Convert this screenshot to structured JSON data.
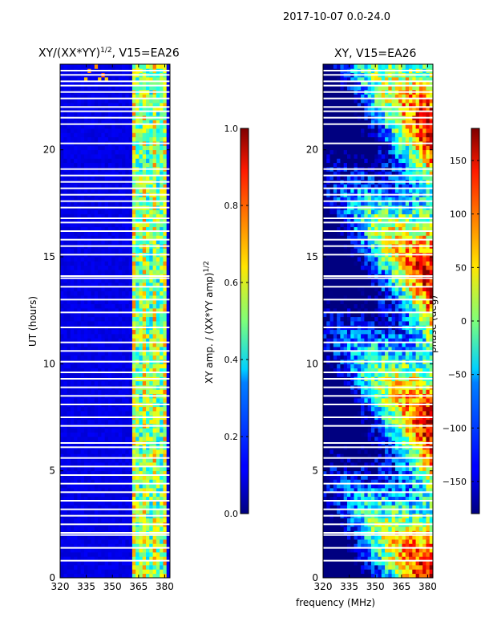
{
  "figure": {
    "title": "2017-10-07 0.0-24.0",
    "xlabel": "frequency (MHz)",
    "ylabel": "UT (hours)"
  },
  "chart_data": [
    {
      "type": "heatmap",
      "title_main": "XY/(XX*YY)",
      "title_exp": "1/2",
      "title_rest": ", V15=EA26",
      "xlabel": "",
      "ylabel": "UT (hours)",
      "xlim": [
        320,
        383
      ],
      "ylim": [
        0,
        24
      ],
      "xticks": [
        "320",
        "335",
        "350",
        "365",
        "380"
      ],
      "xtick_values": [
        320,
        335,
        350,
        365,
        380
      ],
      "yticks": [
        "0",
        "5",
        "10",
        "15",
        "20"
      ],
      "ytick_values": [
        0,
        5,
        10,
        15,
        20
      ],
      "colorbar": {
        "label_main": "XY amp. / (XX*YY amp)",
        "label_exp": "1/2",
        "range": [
          0.0,
          1.0
        ],
        "ticks": [
          "0.0",
          "0.2",
          "0.4",
          "0.6",
          "0.8",
          "1.0"
        ],
        "tick_values": [
          0.0,
          0.2,
          0.4,
          0.6,
          0.8,
          1.0
        ],
        "colormap": "jet"
      },
      "features": {
        "background_value": 0.08,
        "band_start_mhz": 362,
        "band_end_mhz": 381,
        "band_value_min": 0.3,
        "band_value_max": 0.65
      }
    },
    {
      "type": "heatmap",
      "title": "XY, V15=EA26",
      "xlabel": "frequency (MHz)",
      "xlim": [
        320,
        383
      ],
      "ylim": [
        0,
        24
      ],
      "xticks": [
        "320",
        "335",
        "350",
        "365",
        "380"
      ],
      "xtick_values": [
        320,
        335,
        350,
        365,
        380
      ],
      "yticks": [
        "0",
        "5",
        "10",
        "15",
        "20"
      ],
      "ytick_values": [
        0,
        5,
        10,
        15,
        20
      ],
      "colorbar": {
        "label": "phase (deg)",
        "range": [
          -180,
          180
        ],
        "ticks": [
          "−150",
          "−100",
          "−50",
          "0",
          "50",
          "100",
          "150"
        ],
        "tick_values": [
          -150,
          -100,
          -50,
          0,
          50,
          100,
          150
        ],
        "colormap": "jet"
      }
    }
  ],
  "flagged_hours": [
    0.8,
    1.4,
    2.0,
    2.1,
    2.5,
    2.9,
    3.2,
    3.6,
    4.0,
    4.4,
    4.8,
    5.2,
    5.6,
    6.1,
    6.3,
    7.1,
    7.5,
    8.1,
    8.5,
    8.9,
    9.3,
    9.6,
    10.1,
    10.6,
    11.0,
    11.7,
    12.4,
    13.0,
    13.6,
    14.0,
    14.1,
    15.1,
    15.5,
    15.8,
    16.2,
    16.6,
    16.8,
    17.3,
    17.6,
    17.9,
    18.2,
    18.5,
    18.8,
    19.1,
    20.3,
    21.2,
    21.5,
    21.8,
    22.0,
    22.4,
    22.7,
    23.0,
    23.2,
    23.5,
    23.7
  ]
}
